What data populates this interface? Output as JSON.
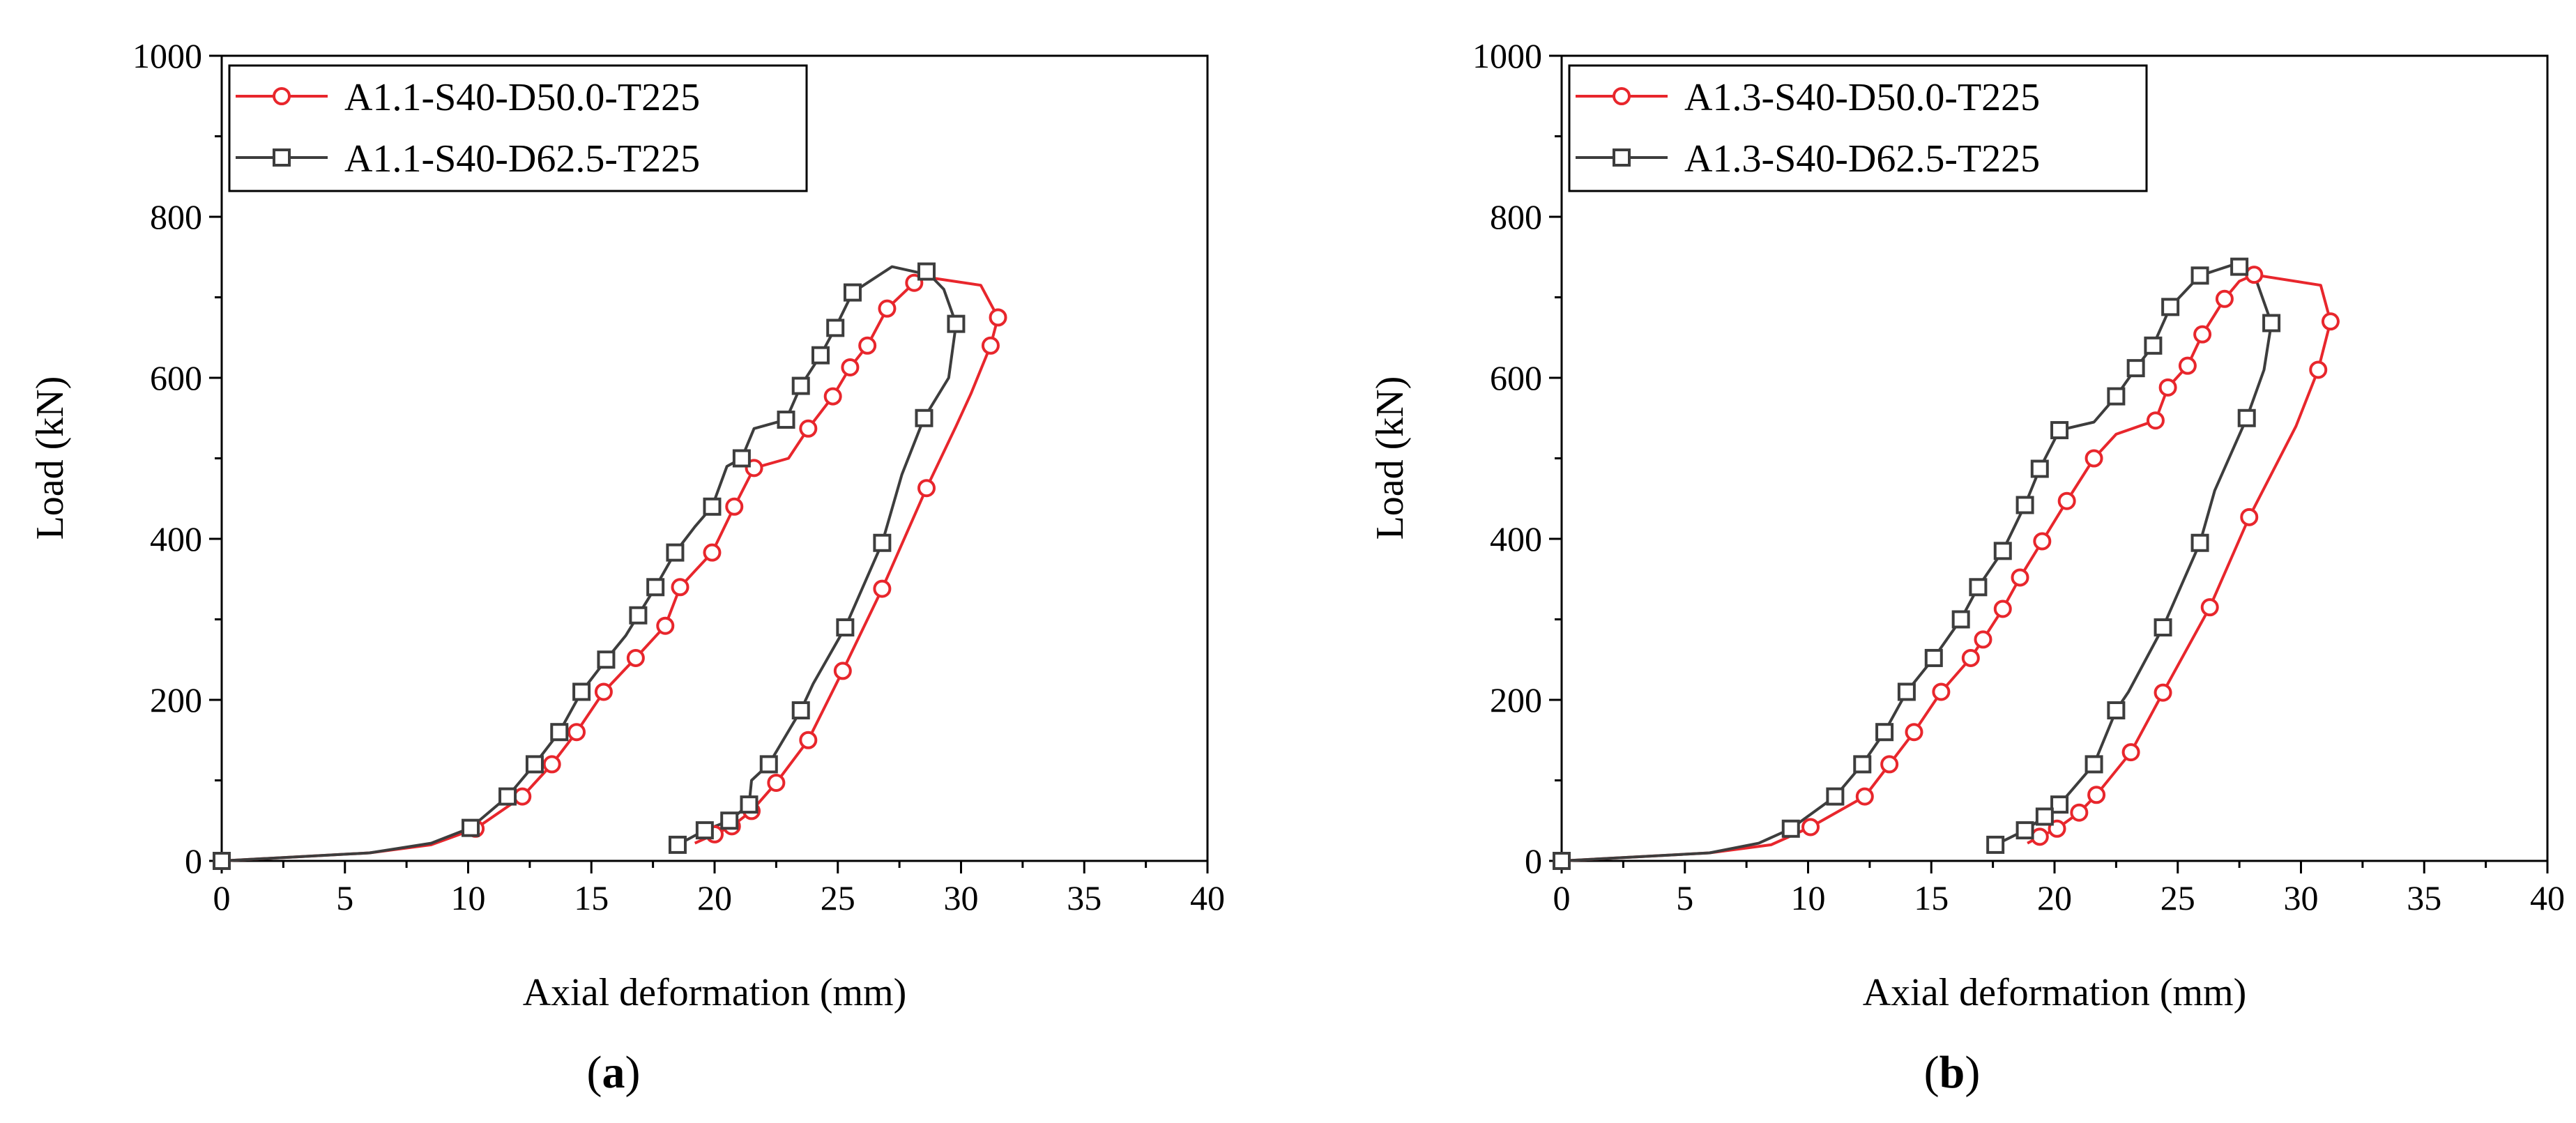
{
  "chart_data": [
    {
      "panel": "a",
      "caption": "(a)",
      "caption_letter": "a",
      "type": "line",
      "title": "",
      "xlabel": "Axial deformation (mm)",
      "ylabel": "Load (kN)",
      "xlim": [
        0,
        40
      ],
      "ylim": [
        0,
        1000
      ],
      "xticks": [
        0,
        5,
        10,
        15,
        20,
        25,
        30,
        35,
        40
      ],
      "yticks": [
        0,
        200,
        400,
        600,
        800,
        1000
      ],
      "grid": false,
      "legend_position": "top-left",
      "series": [
        {
          "name": "A1.1-S40-D50.0-T225",
          "color": "#e8262c",
          "marker": "circle",
          "curve": [
            [
              0,
              0
            ],
            [
              6,
              10
            ],
            [
              8.5,
              20
            ],
            [
              10.3,
              40
            ],
            [
              12.2,
              80
            ],
            [
              13.4,
              120
            ],
            [
              14.4,
              160
            ],
            [
              15.5,
              210
            ],
            [
              16.8,
              252
            ],
            [
              18,
              292
            ],
            [
              18.6,
              340
            ],
            [
              19.2,
              360
            ],
            [
              19.9,
              383
            ],
            [
              20.8,
              440
            ],
            [
              21.6,
              488
            ],
            [
              23,
              500
            ],
            [
              23.8,
              537
            ],
            [
              24.8,
              577
            ],
            [
              25.5,
              613
            ],
            [
              26.2,
              640
            ],
            [
              27,
              686
            ],
            [
              28.1,
              718
            ],
            [
              28.6,
              725
            ],
            [
              30.8,
              715
            ],
            [
              31.5,
              675
            ],
            [
              31.2,
              640
            ],
            [
              30.4,
              580
            ],
            [
              29.8,
              540
            ],
            [
              28.6,
              463
            ],
            [
              26.8,
              338
            ],
            [
              25.2,
              236
            ],
            [
              23.8,
              150
            ],
            [
              22.5,
              97
            ],
            [
              21.5,
              62
            ],
            [
              20.7,
              43
            ],
            [
              20,
              33
            ],
            [
              19.2,
              22
            ]
          ],
          "markers": [
            [
              0,
              0
            ],
            [
              10.3,
              40
            ],
            [
              12.2,
              80
            ],
            [
              13.4,
              120
            ],
            [
              14.4,
              160
            ],
            [
              15.5,
              210
            ],
            [
              16.8,
              252
            ],
            [
              18,
              292
            ],
            [
              18.6,
              340
            ],
            [
              19.9,
              383
            ],
            [
              20.8,
              440
            ],
            [
              21.6,
              488
            ],
            [
              23.8,
              537
            ],
            [
              24.8,
              577
            ],
            [
              25.5,
              613
            ],
            [
              26.2,
              640
            ],
            [
              27,
              686
            ],
            [
              28.1,
              718
            ],
            [
              31.5,
              675
            ],
            [
              31.2,
              640
            ],
            [
              28.6,
              463
            ],
            [
              26.8,
              338
            ],
            [
              25.2,
              236
            ],
            [
              23.8,
              150
            ],
            [
              22.5,
              97
            ],
            [
              21.5,
              62
            ],
            [
              20.7,
              43
            ],
            [
              20,
              33
            ]
          ]
        },
        {
          "name": "A1.1-S40-D62.5-T225",
          "color": "#3d3d3d",
          "marker": "square",
          "curve": [
            [
              0,
              0
            ],
            [
              6,
              10
            ],
            [
              8.5,
              22
            ],
            [
              10.1,
              41
            ],
            [
              11.6,
              80
            ],
            [
              12.7,
              120
            ],
            [
              13.7,
              160
            ],
            [
              14.6,
              210
            ],
            [
              15.6,
              250
            ],
            [
              16.4,
              280
            ],
            [
              16.9,
              305
            ],
            [
              17.6,
              340
            ],
            [
              18.4,
              383
            ],
            [
              19.2,
              415
            ],
            [
              19.9,
              440
            ],
            [
              20.5,
              490
            ],
            [
              21.1,
              500
            ],
            [
              21.6,
              537
            ],
            [
              22.9,
              548
            ],
            [
              23.5,
              590
            ],
            [
              24.3,
              628
            ],
            [
              24.9,
              662
            ],
            [
              25.6,
              706
            ],
            [
              27.2,
              738
            ],
            [
              28.4,
              730
            ],
            [
              28.6,
              732
            ],
            [
              29.3,
              710
            ],
            [
              29.8,
              667
            ],
            [
              29.5,
              600
            ],
            [
              28.5,
              550
            ],
            [
              27.6,
              480
            ],
            [
              26.8,
              395
            ],
            [
              25.3,
              290
            ],
            [
              24,
              220
            ],
            [
              23.5,
              187
            ],
            [
              22.2,
              120
            ],
            [
              21.5,
              100
            ],
            [
              21.4,
              70
            ],
            [
              20.6,
              50
            ],
            [
              19.6,
              38
            ],
            [
              18.5,
              20
            ]
          ],
          "markers": [
            [
              0,
              0
            ],
            [
              10.1,
              41
            ],
            [
              11.6,
              80
            ],
            [
              12.7,
              120
            ],
            [
              13.7,
              160
            ],
            [
              14.6,
              210
            ],
            [
              15.6,
              250
            ],
            [
              16.9,
              305
            ],
            [
              17.6,
              340
            ],
            [
              18.4,
              383
            ],
            [
              19.9,
              440
            ],
            [
              21.1,
              500
            ],
            [
              22.9,
              548
            ],
            [
              23.5,
              590
            ],
            [
              24.3,
              628
            ],
            [
              24.9,
              662
            ],
            [
              25.6,
              706
            ],
            [
              28.6,
              732
            ],
            [
              29.8,
              667
            ],
            [
              28.5,
              550
            ],
            [
              26.8,
              395
            ],
            [
              25.3,
              290
            ],
            [
              23.5,
              187
            ],
            [
              22.2,
              120
            ],
            [
              21.4,
              70
            ],
            [
              20.6,
              50
            ],
            [
              19.6,
              38
            ],
            [
              18.5,
              20
            ]
          ]
        }
      ]
    },
    {
      "panel": "b",
      "caption": "(b)",
      "caption_letter": "b",
      "type": "line",
      "title": "",
      "xlabel": "Axial deformation (mm)",
      "ylabel": "Load (kN)",
      "xlim": [
        0,
        40
      ],
      "ylim": [
        0,
        1000
      ],
      "xticks": [
        0,
        5,
        10,
        15,
        20,
        25,
        30,
        35,
        40
      ],
      "yticks": [
        0,
        200,
        400,
        600,
        800,
        1000
      ],
      "grid": false,
      "legend_position": "top-left",
      "series": [
        {
          "name": "A1.3-S40-D50.0-T225",
          "color": "#e8262c",
          "marker": "circle",
          "curve": [
            [
              0,
              0
            ],
            [
              6,
              10
            ],
            [
              8.5,
              20
            ],
            [
              10.1,
              42
            ],
            [
              12.3,
              80
            ],
            [
              13.3,
              120
            ],
            [
              14.3,
              160
            ],
            [
              15.4,
              210
            ],
            [
              16.6,
              252
            ],
            [
              17.1,
              275
            ],
            [
              17.9,
              313
            ],
            [
              18.6,
              352
            ],
            [
              19.5,
              397
            ],
            [
              20.5,
              447
            ],
            [
              21.6,
              500
            ],
            [
              22.5,
              530
            ],
            [
              24.1,
              547
            ],
            [
              24.6,
              588
            ],
            [
              25.4,
              615
            ],
            [
              26,
              654
            ],
            [
              26.9,
              698
            ],
            [
              27.5,
              720
            ],
            [
              28.1,
              728
            ],
            [
              30.8,
              715
            ],
            [
              31.2,
              670
            ],
            [
              30.7,
              610
            ],
            [
              29.8,
              540
            ],
            [
              27.9,
              427
            ],
            [
              26.3,
              315
            ],
            [
              24.4,
              209
            ],
            [
              23.1,
              135
            ],
            [
              21.7,
              82
            ],
            [
              21,
              60
            ],
            [
              20.1,
              40
            ],
            [
              19.4,
              30
            ],
            [
              18.9,
              22
            ]
          ],
          "markers": [
            [
              0,
              0
            ],
            [
              10.1,
              42
            ],
            [
              12.3,
              80
            ],
            [
              13.3,
              120
            ],
            [
              14.3,
              160
            ],
            [
              15.4,
              210
            ],
            [
              16.6,
              252
            ],
            [
              17.1,
              275
            ],
            [
              17.9,
              313
            ],
            [
              18.6,
              352
            ],
            [
              19.5,
              397
            ],
            [
              20.5,
              447
            ],
            [
              21.6,
              500
            ],
            [
              24.1,
              547
            ],
            [
              24.6,
              588
            ],
            [
              25.4,
              615
            ],
            [
              26,
              654
            ],
            [
              26.9,
              698
            ],
            [
              28.1,
              728
            ],
            [
              31.2,
              670
            ],
            [
              30.7,
              610
            ],
            [
              27.9,
              427
            ],
            [
              26.3,
              315
            ],
            [
              24.4,
              209
            ],
            [
              23.1,
              135
            ],
            [
              21.7,
              82
            ],
            [
              21,
              60
            ],
            [
              20.1,
              40
            ],
            [
              19.4,
              30
            ]
          ]
        },
        {
          "name": "A1.3-S40-D62.5-T225",
          "color": "#3d3d3d",
          "marker": "square",
          "curve": [
            [
              0,
              0
            ],
            [
              6,
              10
            ],
            [
              8,
              22
            ],
            [
              9.3,
              40
            ],
            [
              11.1,
              80
            ],
            [
              12.2,
              120
            ],
            [
              13.1,
              160
            ],
            [
              14,
              210
            ],
            [
              15.1,
              252
            ],
            [
              16.2,
              300
            ],
            [
              16.9,
              340
            ],
            [
              17.9,
              385
            ],
            [
              18.8,
              442
            ],
            [
              19.4,
              487
            ],
            [
              20.2,
              535
            ],
            [
              21.6,
              545
            ],
            [
              22.5,
              577
            ],
            [
              23.3,
              612
            ],
            [
              24,
              640
            ],
            [
              24.7,
              688
            ],
            [
              25.9,
              727
            ],
            [
              27.3,
              741
            ],
            [
              27.5,
              738
            ],
            [
              28.2,
              720
            ],
            [
              28.8,
              668
            ],
            [
              28.5,
              610
            ],
            [
              27.8,
              550
            ],
            [
              26.5,
              460
            ],
            [
              25.9,
              395
            ],
            [
              24.4,
              290
            ],
            [
              23,
              210
            ],
            [
              22.5,
              187
            ],
            [
              21.6,
              120
            ],
            [
              20.2,
              70
            ],
            [
              19.6,
              55
            ],
            [
              18.8,
              38
            ],
            [
              17.6,
              20
            ]
          ],
          "markers": [
            [
              0,
              0
            ],
            [
              9.3,
              40
            ],
            [
              11.1,
              80
            ],
            [
              12.2,
              120
            ],
            [
              13.1,
              160
            ],
            [
              14,
              210
            ],
            [
              15.1,
              252
            ],
            [
              16.2,
              300
            ],
            [
              16.9,
              340
            ],
            [
              17.9,
              385
            ],
            [
              18.8,
              442
            ],
            [
              19.4,
              487
            ],
            [
              20.2,
              535
            ],
            [
              22.5,
              577
            ],
            [
              23.3,
              612
            ],
            [
              24,
              640
            ],
            [
              24.7,
              688
            ],
            [
              25.9,
              727
            ],
            [
              27.5,
              738
            ],
            [
              28.8,
              668
            ],
            [
              27.8,
              550
            ],
            [
              25.9,
              395
            ],
            [
              24.4,
              290
            ],
            [
              22.5,
              187
            ],
            [
              21.6,
              120
            ],
            [
              20.2,
              70
            ],
            [
              19.6,
              55
            ],
            [
              18.8,
              38
            ],
            [
              17.6,
              20
            ]
          ]
        }
      ]
    }
  ]
}
